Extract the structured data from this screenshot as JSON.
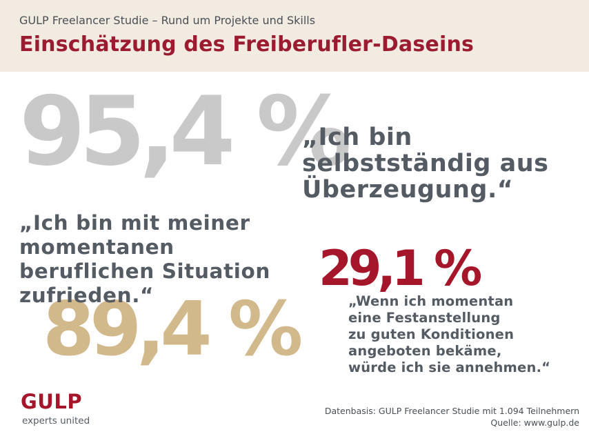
{
  "header": {
    "kicker": "GULP Freelancer Studie – Rund um Projekte und Skills",
    "title": "Einschätzung des Freiberufler-Daseins"
  },
  "stats": [
    {
      "value": "95,4 %",
      "color": "#c9c9c9",
      "quote_lines": [
        "„Ich bin",
        "selbstständig aus",
        "Überzeugung.“"
      ]
    },
    {
      "value": "89,4 %",
      "color": "#d2b98b",
      "quote_lines": [
        "„Ich bin mit meiner",
        "momentanen",
        "beruflichen Situation",
        "zufrieden.“"
      ]
    },
    {
      "value": "29,1 %",
      "color": "#a5162b",
      "quote_lines": [
        "„Wenn ich momentan",
        "eine Festanstellung",
        "zu guten Konditionen",
        "angeboten bekäme,",
        "würde ich sie annehmen.“"
      ]
    }
  ],
  "logo": {
    "name": "GULP",
    "tagline": "experts united"
  },
  "footer": {
    "source_line1": "Datenbasis: GULP Freelancer Studie mit 1.094 Teilnehmern",
    "source_line2": "Quelle: www.gulp.de"
  },
  "colors": {
    "brand_red": "#9b1b30",
    "header_bg": "#f1ebe1",
    "text_grey": "#545b63"
  }
}
